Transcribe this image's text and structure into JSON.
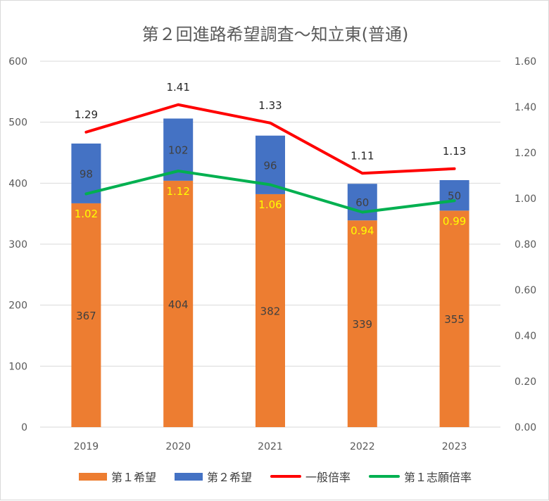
{
  "chart_data": {
    "type": "bar",
    "title": "第２回進路希望調査～知立東(普通)",
    "categories": [
      "2019",
      "2020",
      "2021",
      "2022",
      "2023"
    ],
    "stacked": true,
    "series": [
      {
        "name": "第１希望",
        "kind": "bar",
        "axis": "left",
        "color": "#ed7d31",
        "values": [
          367,
          404,
          382,
          339,
          355
        ]
      },
      {
        "name": "第２希望",
        "kind": "bar",
        "axis": "left",
        "color": "#4472c4",
        "values": [
          98,
          102,
          96,
          60,
          50
        ]
      },
      {
        "name": "一般倍率",
        "kind": "line",
        "axis": "right",
        "color": "#ff0000",
        "values": [
          1.29,
          1.41,
          1.33,
          1.11,
          1.13
        ]
      },
      {
        "name": "第１志願倍率",
        "kind": "line",
        "axis": "right",
        "color": "#00b050",
        "values": [
          1.02,
          1.12,
          1.06,
          0.94,
          0.99
        ]
      }
    ],
    "data_labels": {
      "first": [
        "367",
        "404",
        "382",
        "339",
        "355"
      ],
      "second": [
        "98",
        "102",
        "96",
        "60",
        "50"
      ],
      "general": [
        "1.29",
        "1.41",
        "1.33",
        "1.11",
        "1.13"
      ],
      "first_ratio": [
        "1.02",
        "1.12",
        "1.06",
        "0.94",
        "0.99"
      ]
    },
    "ylim_left": [
      0,
      600
    ],
    "yticks_left": [
      "0",
      "100",
      "200",
      "300",
      "400",
      "500",
      "600"
    ],
    "ylim_right": [
      0,
      1.6
    ],
    "yticks_right": [
      "0.00",
      "0.20",
      "0.40",
      "0.60",
      "0.80",
      "1.00",
      "1.20",
      "1.40",
      "1.60"
    ],
    "grid": true,
    "legend_position": "bottom",
    "first_ratio_label_color": "#ffff00"
  }
}
